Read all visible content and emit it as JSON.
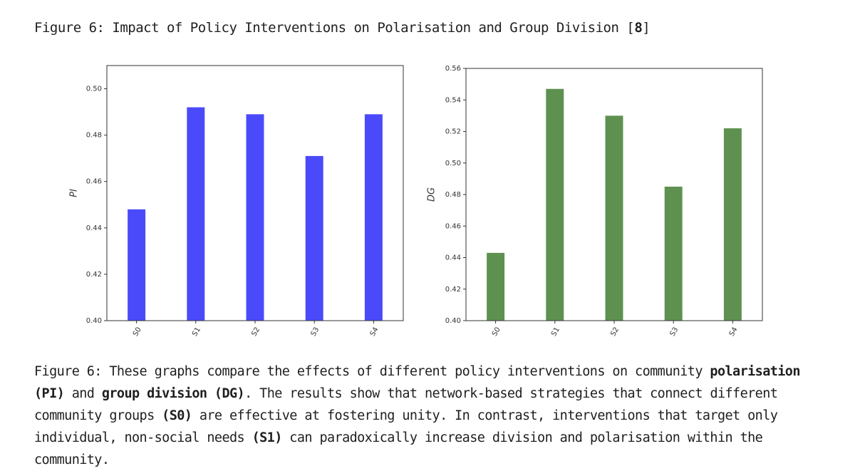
{
  "figure": {
    "title_text": "Figure 6: Impact of Policy Interventions on Polarisation and Group Division [",
    "title_ref": "8",
    "title_close": "]",
    "caption": {
      "p1": "Figure 6: These graphs compare the effects of different policy interventions on community ",
      "b1": "polarisation (PI)",
      "p2": " and ",
      "b2": "group division (DG)",
      "p3": ". The results show that network-based strategies that connect different community groups ",
      "b3": "(S0)",
      "p4": " are effective at fostering unity. In contrast, interventions that target only individual, non-social needs ",
      "b4": "(S1)",
      "p5": " can paradoxically increase division and polarisation within the community."
    }
  },
  "chart_data": [
    {
      "type": "bar",
      "categories": [
        "S0",
        "S1",
        "S2",
        "S3",
        "S4"
      ],
      "values": [
        0.448,
        0.492,
        0.489,
        0.471,
        0.489
      ],
      "ylabel": "PI",
      "xlabel": "",
      "ylim": [
        0.4,
        0.51
      ],
      "yticks": [
        0.4,
        0.42,
        0.44,
        0.46,
        0.48,
        0.5
      ],
      "ytick_labels": [
        "0.40",
        "0.42",
        "0.44",
        "0.46",
        "0.48",
        "0.50"
      ],
      "color": "#4a4afb",
      "grid": false
    },
    {
      "type": "bar",
      "categories": [
        "S0",
        "S1",
        "S2",
        "S3",
        "S4"
      ],
      "values": [
        0.443,
        0.547,
        0.53,
        0.485,
        0.522
      ],
      "ylabel": "DG",
      "xlabel": "",
      "ylim": [
        0.4,
        0.56
      ],
      "yticks": [
        0.4,
        0.42,
        0.44,
        0.46,
        0.48,
        0.5,
        0.52,
        0.54,
        0.56
      ],
      "ytick_labels": [
        "0.40",
        "0.42",
        "0.44",
        "0.46",
        "0.48",
        "0.50",
        "0.52",
        "0.54",
        "0.56"
      ],
      "color": "#5e9150",
      "grid": false
    }
  ]
}
